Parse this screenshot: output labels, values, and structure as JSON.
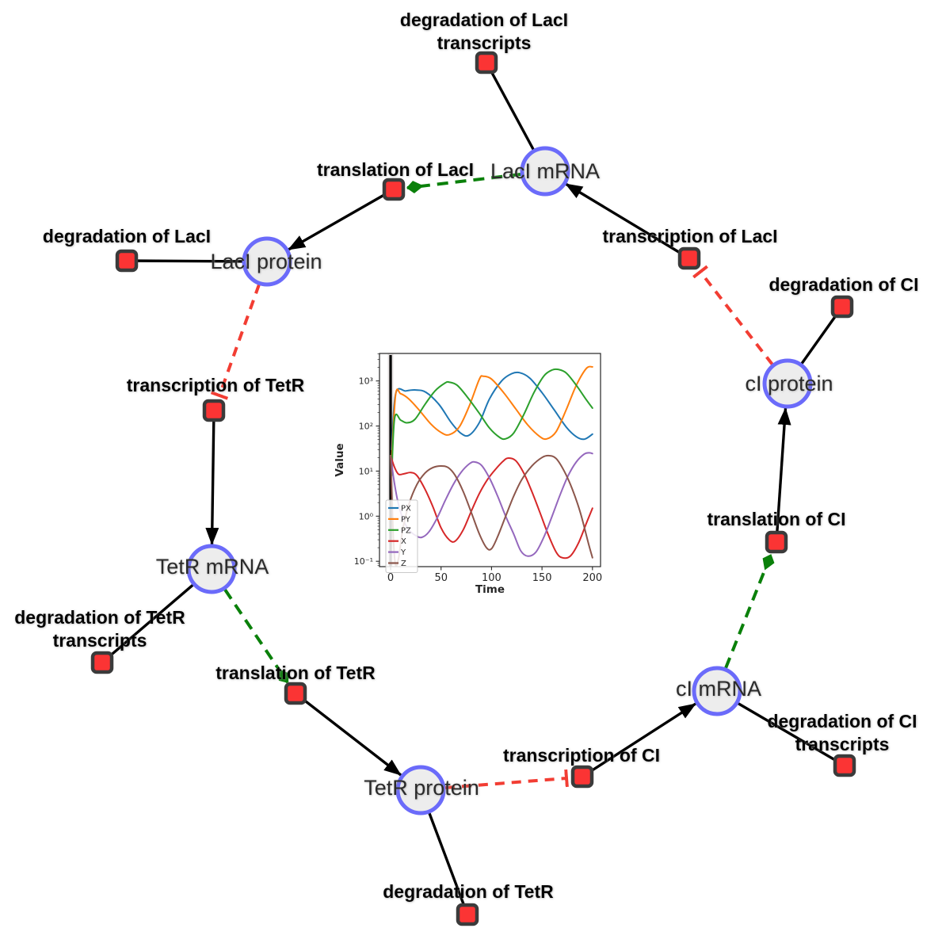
{
  "diagram": {
    "species": {
      "laci_mrna": "LacI mRNA",
      "laci_protein": "LacI protein",
      "tetr_mrna": "TetR mRNA",
      "tetr_protein": "TetR protein",
      "ci_mrna": "cI mRNA",
      "ci_protein": "cI protein"
    },
    "reactions": {
      "deg_laci_tx": {
        "l1": "degradation of LacI",
        "l2": "transcripts"
      },
      "translation_laci": "translation of LacI",
      "deg_laci": "degradation of LacI",
      "transcription_tetr": "transcription of TetR",
      "transcription_laci": "transcription of LacI",
      "deg_ci": "degradation of CI",
      "translation_ci": "translation of CI",
      "deg_ci_tx": {
        "l1": "degradation of CI",
        "l2": "transcripts"
      },
      "transcription_ci": "transcription of CI",
      "translation_tetr": "translation of TetR",
      "deg_tetr_tx": {
        "l1": "degradation of TetR",
        "l2": "transcripts"
      },
      "deg_tetr": "degradation of TetR"
    },
    "colors": {
      "species_fill": "#ededed",
      "species_border": "#6b6bfa",
      "reaction_fill": "#fb3434",
      "reaction_border": "#3b3b3b",
      "production_edge": "#000000",
      "translation_edge": "#0a800a",
      "inhibition_edge": "#f23d33"
    }
  },
  "chart_data": {
    "type": "line",
    "title": "",
    "xlabel": "Time",
    "ylabel": "Value",
    "x_ticks": [
      0,
      50,
      100,
      150,
      200
    ],
    "y_scale": "log",
    "y_ticks": [
      {
        "value": 0.1,
        "label": "10⁻¹"
      },
      {
        "value": 1,
        "label": "10⁰"
      },
      {
        "value": 10,
        "label": "10¹"
      },
      {
        "value": 100,
        "label": "10²"
      },
      {
        "value": 1000,
        "label": "10³"
      }
    ],
    "xlim": [
      -11,
      208
    ],
    "ylim": [
      0.076,
      4070
    ],
    "grid": false,
    "legend_position": "lower left",
    "event_line_x": 0,
    "series": [
      {
        "name": "PX",
        "color": "#1f77b4",
        "points": [
          [
            1,
            30
          ],
          [
            5,
            520
          ],
          [
            15,
            600
          ],
          [
            25,
            630
          ],
          [
            35,
            560
          ],
          [
            48,
            300
          ],
          [
            60,
            120
          ],
          [
            70,
            68
          ],
          [
            78,
            63
          ],
          [
            88,
            120
          ],
          [
            98,
            400
          ],
          [
            110,
            1000
          ],
          [
            120,
            1450
          ],
          [
            128,
            1520
          ],
          [
            138,
            1150
          ],
          [
            150,
            550
          ],
          [
            162,
            230
          ],
          [
            174,
            95
          ],
          [
            184,
            58
          ],
          [
            192,
            51
          ],
          [
            200,
            66
          ]
        ]
      },
      {
        "name": "PY",
        "color": "#ff7f0e",
        "points": [
          [
            1,
            18
          ],
          [
            5,
            500
          ],
          [
            10,
            520
          ],
          [
            18,
            400
          ],
          [
            28,
            230
          ],
          [
            40,
            110
          ],
          [
            50,
            72
          ],
          [
            58,
            64
          ],
          [
            68,
            95
          ],
          [
            78,
            280
          ],
          [
            88,
            1100
          ],
          [
            92,
            1270
          ],
          [
            100,
            1100
          ],
          [
            112,
            550
          ],
          [
            124,
            240
          ],
          [
            136,
            105
          ],
          [
            148,
            58
          ],
          [
            155,
            52
          ],
          [
            164,
            75
          ],
          [
            174,
            230
          ],
          [
            184,
            800
          ],
          [
            194,
            1900
          ],
          [
            200,
            2050
          ]
        ]
      },
      {
        "name": "PZ",
        "color": "#2ca02c",
        "points": [
          [
            1,
            8
          ],
          [
            4,
            150
          ],
          [
            10,
            135
          ],
          [
            16,
            118
          ],
          [
            24,
            140
          ],
          [
            34,
            300
          ],
          [
            44,
            600
          ],
          [
            54,
            900
          ],
          [
            58,
            940
          ],
          [
            66,
            800
          ],
          [
            76,
            440
          ],
          [
            88,
            190
          ],
          [
            98,
            90
          ],
          [
            108,
            56
          ],
          [
            114,
            52
          ],
          [
            122,
            70
          ],
          [
            132,
            180
          ],
          [
            142,
            550
          ],
          [
            152,
            1300
          ],
          [
            160,
            1750
          ],
          [
            166,
            1800
          ],
          [
            174,
            1500
          ],
          [
            184,
            800
          ],
          [
            194,
            380
          ],
          [
            200,
            250
          ]
        ]
      },
      {
        "name": "X",
        "color": "#d62728",
        "points": [
          [
            0,
            22
          ],
          [
            4,
            12
          ],
          [
            8,
            8.5
          ],
          [
            14,
            8.8
          ],
          [
            20,
            9.3
          ],
          [
            26,
            8
          ],
          [
            34,
            4
          ],
          [
            42,
            1.6
          ],
          [
            50,
            0.55
          ],
          [
            58,
            0.3
          ],
          [
            64,
            0.28
          ],
          [
            72,
            0.5
          ],
          [
            80,
            1.3
          ],
          [
            88,
            3.2
          ],
          [
            96,
            6.5
          ],
          [
            104,
            11
          ],
          [
            112,
            17
          ],
          [
            117,
            19.5
          ],
          [
            124,
            17
          ],
          [
            132,
            9
          ],
          [
            140,
            3.5
          ],
          [
            148,
            1.2
          ],
          [
            156,
            0.4
          ],
          [
            164,
            0.16
          ],
          [
            170,
            0.12
          ],
          [
            178,
            0.13
          ],
          [
            186,
            0.25
          ],
          [
            194,
            0.7
          ],
          [
            200,
            1.5
          ]
        ]
      },
      {
        "name": "Y",
        "color": "#9467bd",
        "points": [
          [
            0,
            22
          ],
          [
            3,
            7
          ],
          [
            7,
            2.2
          ],
          [
            12,
            0.9
          ],
          [
            18,
            0.5
          ],
          [
            25,
            0.37
          ],
          [
            31,
            0.34
          ],
          [
            38,
            0.45
          ],
          [
            46,
            0.9
          ],
          [
            54,
            2.2
          ],
          [
            62,
            5
          ],
          [
            70,
            9.5
          ],
          [
            78,
            14.5
          ],
          [
            83,
            16
          ],
          [
            90,
            13.5
          ],
          [
            98,
            7
          ],
          [
            106,
            2.8
          ],
          [
            114,
            1
          ],
          [
            122,
            0.4
          ],
          [
            129,
            0.17
          ],
          [
            136,
            0.13
          ],
          [
            144,
            0.16
          ],
          [
            152,
            0.35
          ],
          [
            160,
            1
          ],
          [
            168,
            3
          ],
          [
            176,
            8
          ],
          [
            184,
            16
          ],
          [
            192,
            24
          ],
          [
            197,
            25.5
          ],
          [
            200,
            24.5
          ]
        ]
      },
      {
        "name": "Z",
        "color": "#8c564b",
        "points": [
          [
            0,
            22
          ],
          [
            1.5,
            2
          ],
          [
            3,
            0.25
          ],
          [
            5,
            0.08
          ],
          [
            8,
            0.12
          ],
          [
            12,
            0.5
          ],
          [
            18,
            1.8
          ],
          [
            26,
            5
          ],
          [
            34,
            9
          ],
          [
            42,
            12
          ],
          [
            50,
            13
          ],
          [
            57,
            12
          ],
          [
            64,
            8
          ],
          [
            72,
            3.5
          ],
          [
            80,
            1.2
          ],
          [
            88,
            0.4
          ],
          [
            95,
            0.2
          ],
          [
            100,
            0.19
          ],
          [
            106,
            0.35
          ],
          [
            114,
            1
          ],
          [
            122,
            2.8
          ],
          [
            130,
            6.5
          ],
          [
            140,
            13
          ],
          [
            150,
            20
          ],
          [
            157,
            22
          ],
          [
            164,
            19
          ],
          [
            172,
            10
          ],
          [
            180,
            4
          ],
          [
            188,
            1.2
          ],
          [
            196,
            0.25
          ],
          [
            200,
            0.12
          ]
        ]
      }
    ]
  }
}
